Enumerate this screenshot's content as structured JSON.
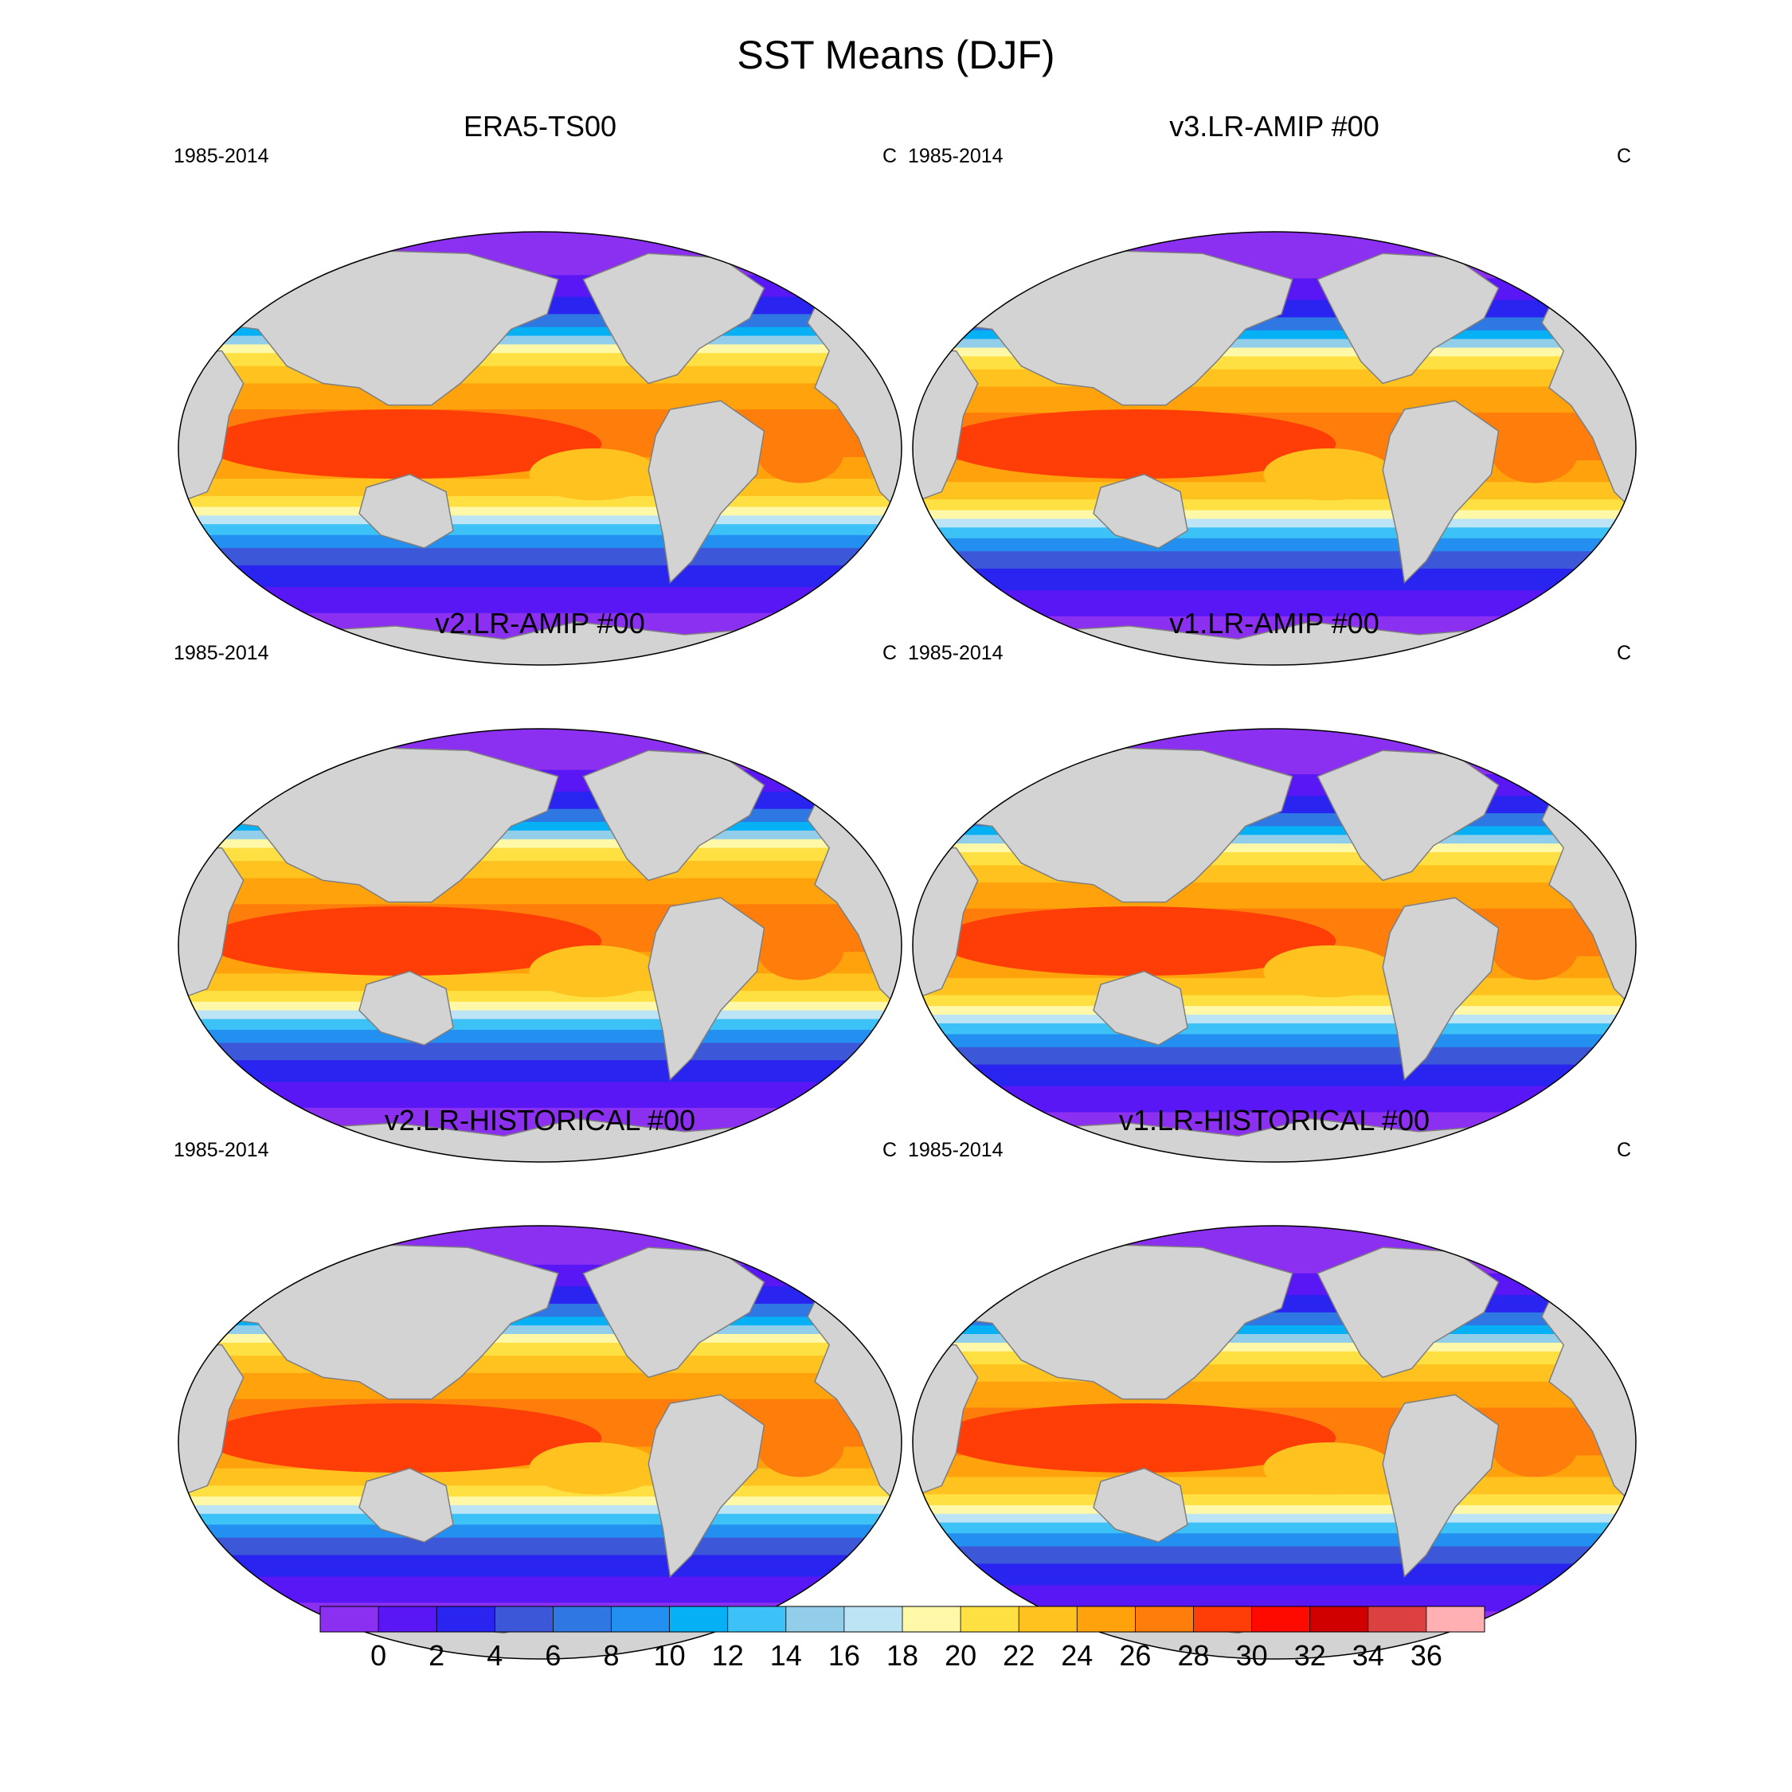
{
  "title": "SST Means (DJF)",
  "panels": [
    {
      "title": "ERA5-TS00",
      "left_label": "1985-2014",
      "right_label": "C",
      "variant": 0
    },
    {
      "title": "v3.LR-AMIP  #00",
      "left_label": "1985-2014",
      "right_label": "C",
      "variant": 1
    },
    {
      "title": "v2.LR-AMIP  #00",
      "left_label": "1985-2014",
      "right_label": "C",
      "variant": 2
    },
    {
      "title": "v1.LR-AMIP  #00",
      "left_label": "1985-2014",
      "right_label": "C",
      "variant": 3
    },
    {
      "title": "v2.LR-HISTORICAL  #00",
      "left_label": "1985-2014",
      "right_label": "C",
      "variant": 4
    },
    {
      "title": "v1.LR-HISTORICAL  #00",
      "left_label": "1985-2014",
      "right_label": "C",
      "variant": 5
    }
  ],
  "colorbar": {
    "labels": [
      "0",
      "2",
      "4",
      "6",
      "8",
      "10",
      "12",
      "14",
      "16",
      "18",
      "20",
      "22",
      "24",
      "26",
      "28",
      "30",
      "32",
      "34",
      "36"
    ],
    "colors": [
      "#8b2ff0",
      "#5a17f5",
      "#2a24f0",
      "#3c58d8",
      "#2f77e3",
      "#238ff0",
      "#05b0f5",
      "#3cc2f7",
      "#92cde9",
      "#bde4f5",
      "#fff8a8",
      "#ffe043",
      "#ffc21f",
      "#ffa20b",
      "#ff7d0a",
      "#ff3e07",
      "#ff0a00",
      "#d10000",
      "#dd4040",
      "#ffb0b3"
    ]
  },
  "map_style": {
    "land_color": "#d3d3d3",
    "coast_color": "#7f7f7f"
  }
}
